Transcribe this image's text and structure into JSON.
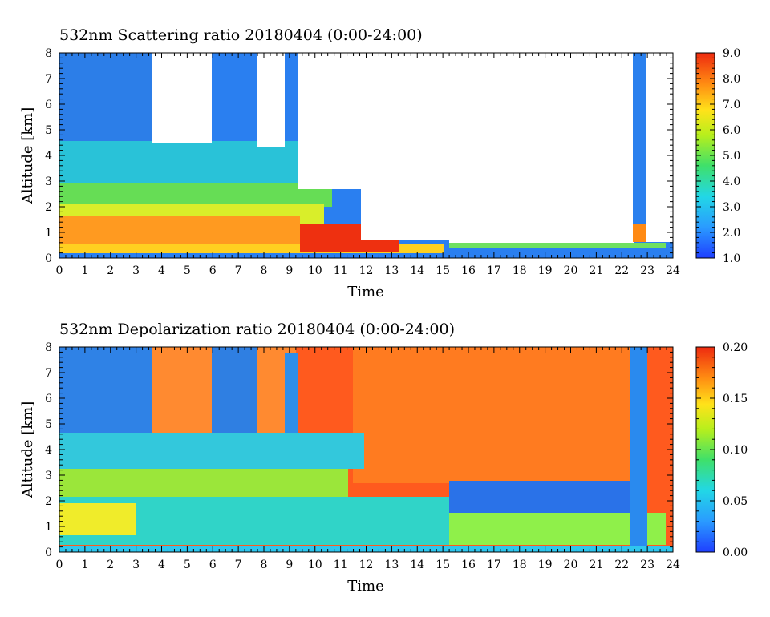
{
  "chart_data": [
    {
      "type": "heatmap",
      "title": "532nm Scattering ratio  20180404 (0:00-24:00)",
      "xlabel": "Time",
      "ylabel": "Altitude [km]",
      "xlim": [
        0,
        24
      ],
      "ylim": [
        0,
        8
      ],
      "x_ticks": [
        "0",
        "1",
        "2",
        "3",
        "4",
        "5",
        "6",
        "7",
        "8",
        "9",
        "10",
        "11",
        "12",
        "13",
        "14",
        "15",
        "16",
        "17",
        "18",
        "19",
        "20",
        "21",
        "22",
        "23",
        "24"
      ],
      "y_ticks": [
        "0",
        "1",
        "2",
        "3",
        "4",
        "5",
        "6",
        "7",
        "8"
      ],
      "colorbar": {
        "range": [
          1.0,
          9.0
        ],
        "ticks": [
          "1.0",
          "2.0",
          "3.0",
          "4.0",
          "5.0",
          "6.0",
          "7.0",
          "8.0",
          "9.0"
        ]
      }
    },
    {
      "type": "heatmap",
      "title": "532nm Depolarization ratio  20180404 (0:00-24:00)",
      "xlabel": "Time",
      "ylabel": "Altitude [km]",
      "xlim": [
        0,
        24
      ],
      "ylim": [
        0,
        8
      ],
      "x_ticks": [
        "0",
        "1",
        "2",
        "3",
        "4",
        "5",
        "6",
        "7",
        "8",
        "9",
        "10",
        "11",
        "12",
        "13",
        "14",
        "15",
        "16",
        "17",
        "18",
        "19",
        "20",
        "21",
        "22",
        "23",
        "24"
      ],
      "y_ticks": [
        "0",
        "1",
        "2",
        "3",
        "4",
        "5",
        "6",
        "7",
        "8"
      ],
      "colorbar": {
        "range": [
          0.0,
          0.2
        ],
        "ticks": [
          "0.00",
          "0.05",
          "0.10",
          "0.15",
          "0.20"
        ]
      }
    }
  ]
}
